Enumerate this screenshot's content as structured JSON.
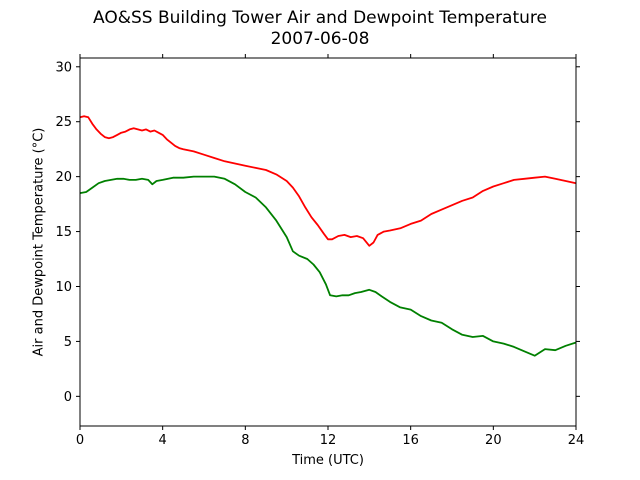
{
  "chart_data": {
    "type": "line",
    "title": "AO&SS Building Tower Air and Dewpoint Temperature",
    "subtitle": "2007-06-08",
    "xlabel": "Time (UTC)",
    "ylabel": "Air and Dewpoint Temperature (°C)",
    "xlim": [
      0,
      24
    ],
    "ylim": [
      -2.7,
      30.8
    ],
    "xticks": [
      0,
      4,
      8,
      12,
      16,
      20,
      24
    ],
    "yticks": [
      0,
      5,
      10,
      15,
      20,
      25,
      30
    ],
    "grid": false,
    "series": [
      {
        "color": "#ff0000",
        "x": [
          0,
          0.2,
          0.4,
          0.6,
          0.8,
          1.0,
          1.2,
          1.4,
          1.6,
          1.8,
          2.0,
          2.2,
          2.4,
          2.6,
          2.8,
          3.0,
          3.2,
          3.4,
          3.6,
          3.8,
          4.0,
          4.2,
          4.4,
          4.6,
          4.8,
          5.0,
          5.5,
          6.0,
          6.5,
          7.0,
          7.5,
          8.0,
          8.5,
          9.0,
          9.5,
          10.0,
          10.3,
          10.6,
          10.9,
          11.2,
          11.5,
          11.8,
          12.0,
          12.2,
          12.5,
          12.8,
          13.1,
          13.4,
          13.7,
          14.0,
          14.2,
          14.4,
          14.7,
          15.0,
          15.5,
          16.0,
          16.5,
          17.0,
          17.5,
          18.0,
          18.5,
          19.0,
          19.5,
          20.0,
          20.5,
          21.0,
          21.5,
          22.0,
          22.5,
          23.0,
          23.5,
          24.0
        ],
        "y": [
          25.4,
          25.5,
          25.4,
          24.8,
          24.3,
          23.9,
          23.6,
          23.5,
          23.6,
          23.8,
          24.0,
          24.1,
          24.3,
          24.4,
          24.3,
          24.2,
          24.3,
          24.1,
          24.2,
          24.0,
          23.8,
          23.4,
          23.1,
          22.8,
          22.6,
          22.5,
          22.3,
          22.0,
          21.7,
          21.4,
          21.2,
          21.0,
          20.8,
          20.6,
          20.2,
          19.6,
          19.0,
          18.2,
          17.2,
          16.3,
          15.6,
          14.8,
          14.3,
          14.3,
          14.6,
          14.7,
          14.5,
          14.6,
          14.4,
          13.7,
          14.0,
          14.7,
          15.0,
          15.1,
          15.3,
          15.7,
          16.0,
          16.6,
          17.0,
          17.4,
          17.8,
          18.1,
          18.7,
          19.1,
          19.4,
          19.7,
          19.8,
          19.9,
          20.0,
          19.8,
          19.6,
          19.4
        ]
      },
      {
        "color": "#008000",
        "x": [
          0,
          0.3,
          0.6,
          0.9,
          1.2,
          1.5,
          1.8,
          2.1,
          2.4,
          2.7,
          3.0,
          3.3,
          3.5,
          3.7,
          4.0,
          4.5,
          5.0,
          5.5,
          6.0,
          6.5,
          7.0,
          7.5,
          8.0,
          8.5,
          9.0,
          9.5,
          10.0,
          10.3,
          10.6,
          11.0,
          11.3,
          11.6,
          11.9,
          12.1,
          12.4,
          12.7,
          13.0,
          13.3,
          13.6,
          14.0,
          14.3,
          14.6,
          15.0,
          15.5,
          16.0,
          16.5,
          17.0,
          17.5,
          18.0,
          18.5,
          19.0,
          19.5,
          20.0,
          20.5,
          21.0,
          21.5,
          22.0,
          22.5,
          23.0,
          23.5,
          24.0
        ],
        "y": [
          18.5,
          18.6,
          19.0,
          19.4,
          19.6,
          19.7,
          19.8,
          19.8,
          19.7,
          19.7,
          19.8,
          19.7,
          19.3,
          19.6,
          19.7,
          19.9,
          19.9,
          20.0,
          20.0,
          20.0,
          19.8,
          19.3,
          18.6,
          18.1,
          17.2,
          16.0,
          14.5,
          13.2,
          12.8,
          12.5,
          12.0,
          11.3,
          10.2,
          9.2,
          9.1,
          9.2,
          9.2,
          9.4,
          9.5,
          9.7,
          9.5,
          9.1,
          8.6,
          8.1,
          7.9,
          7.3,
          6.9,
          6.7,
          6.1,
          5.6,
          5.4,
          5.5,
          5.0,
          4.8,
          4.5,
          4.1,
          3.7,
          4.3,
          4.2,
          4.6,
          4.9
        ]
      }
    ]
  }
}
